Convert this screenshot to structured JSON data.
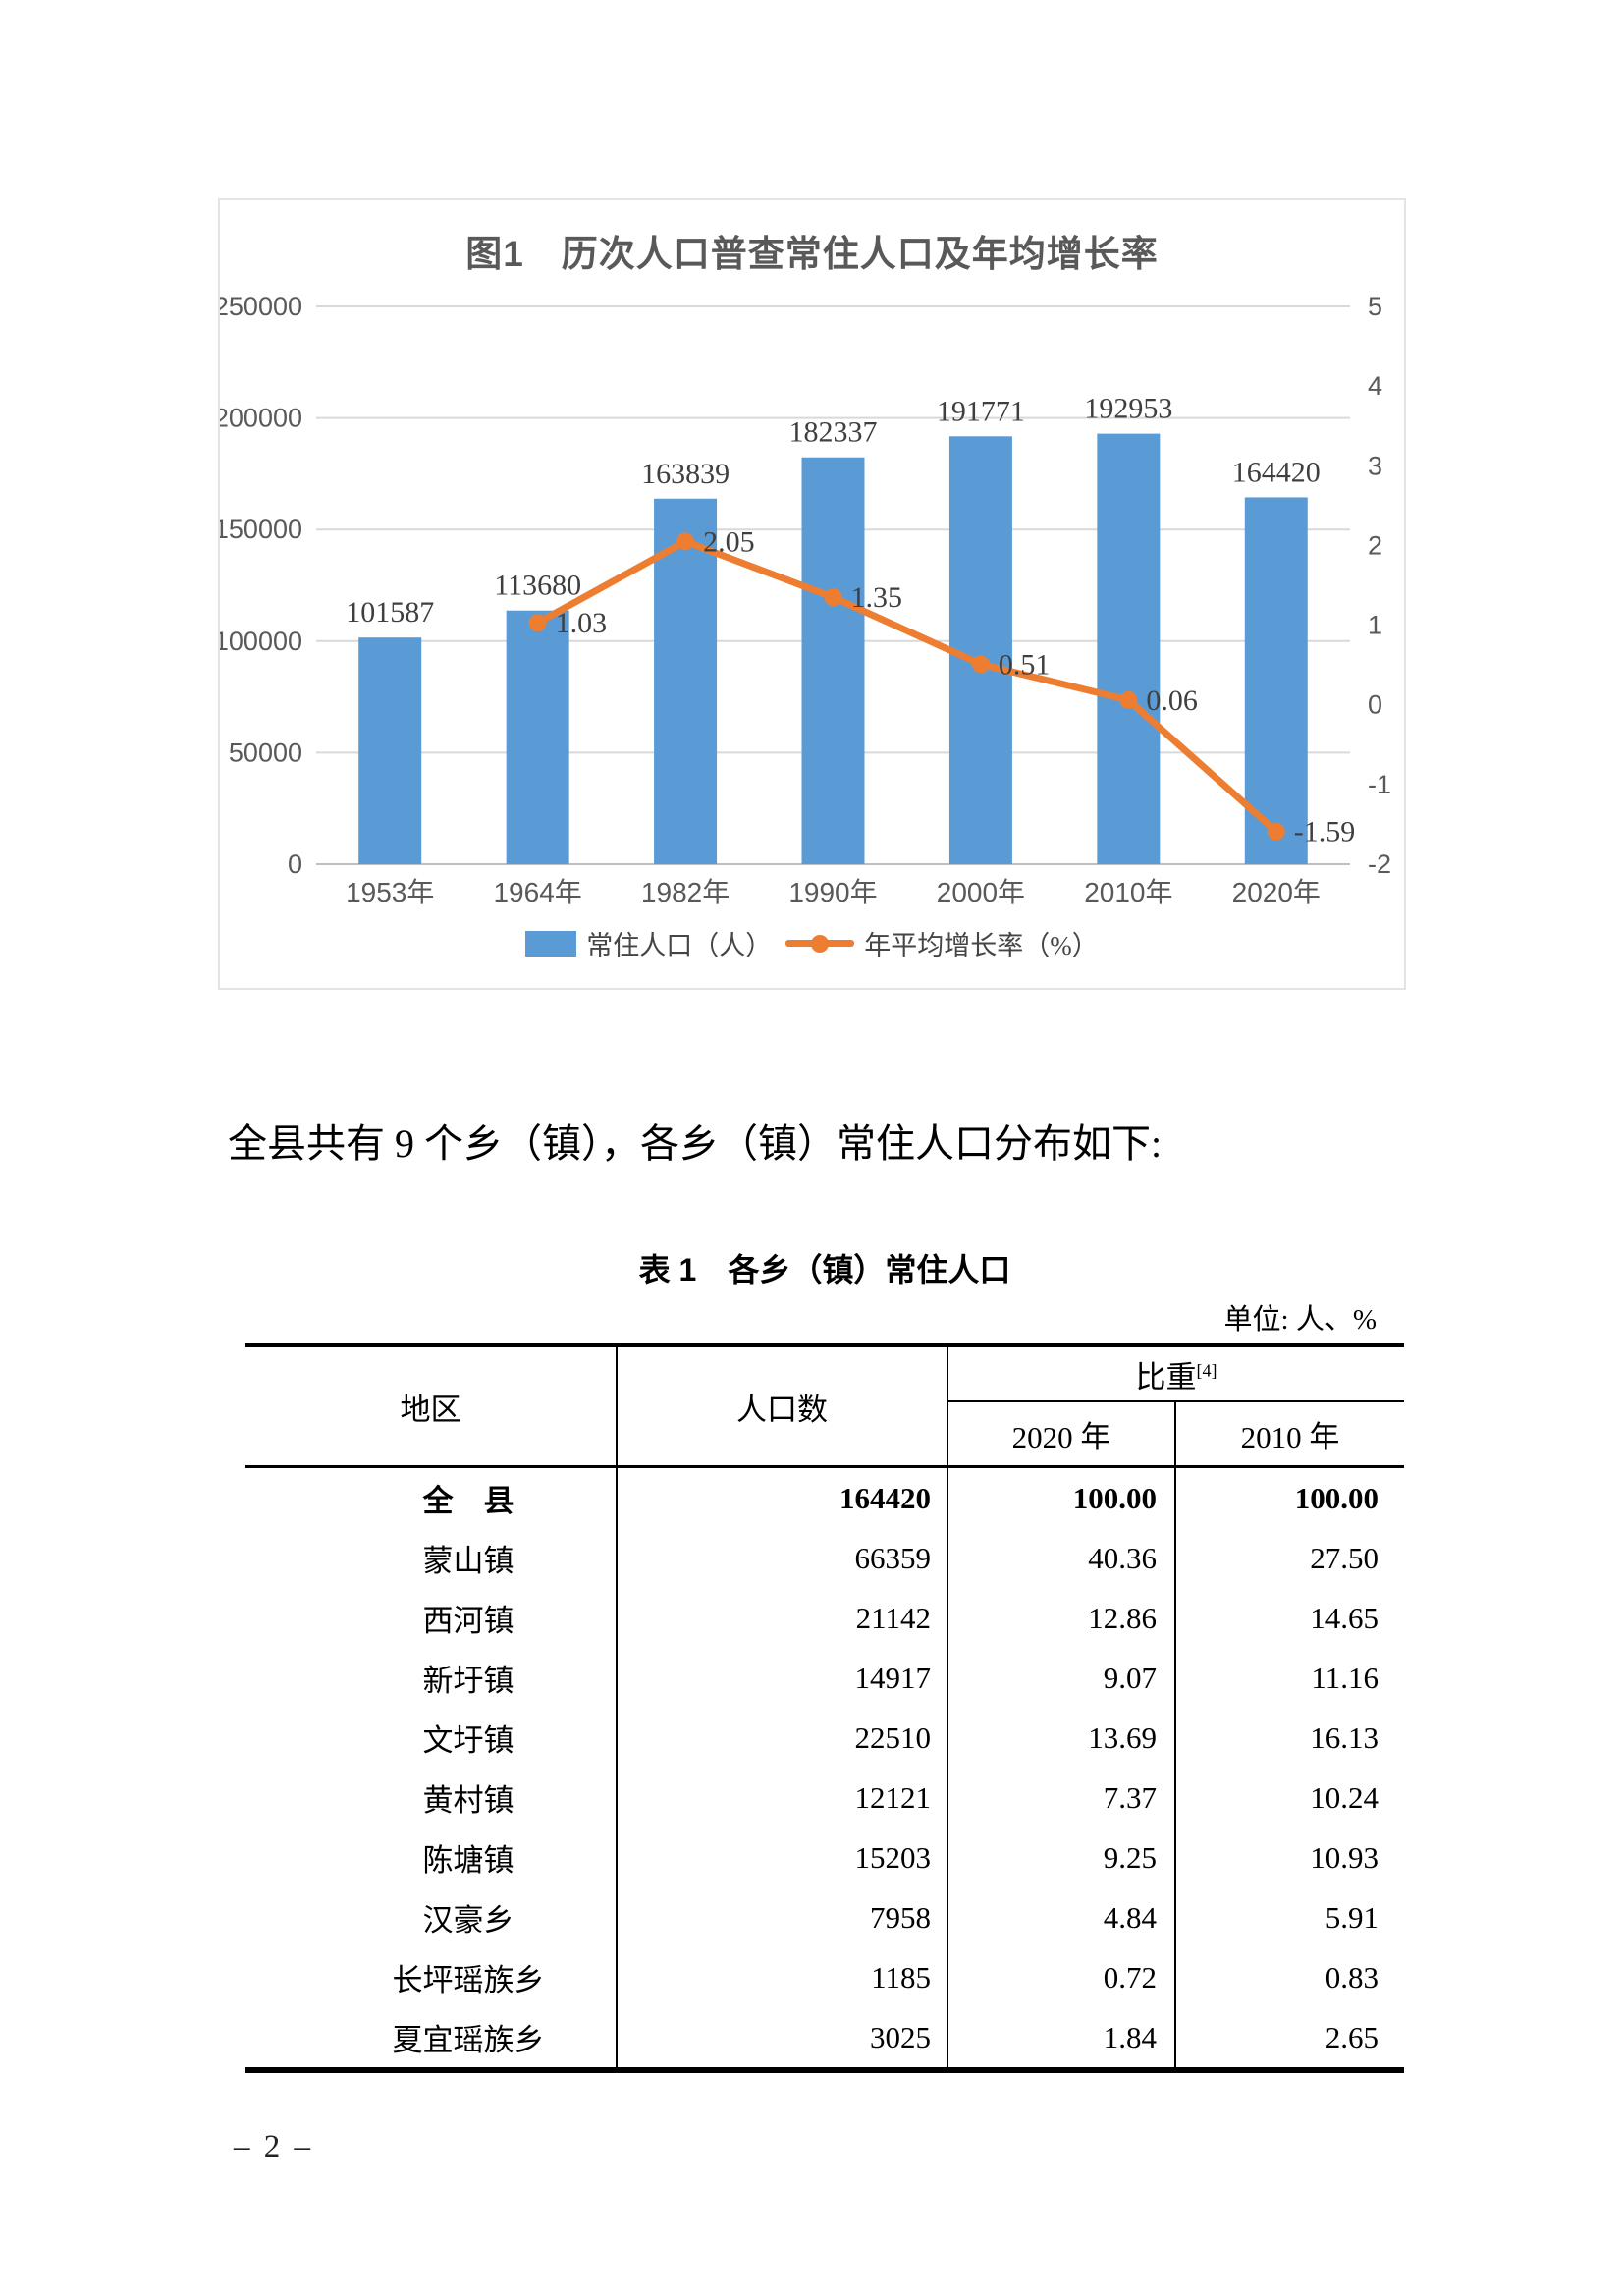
{
  "page": {
    "number_label": "– 2 –"
  },
  "chart": {
    "title": "图1　历次人口普查常住人口及年均增长率"
  },
  "chart_data": {
    "type": "bar",
    "title": "图1　历次人口普查常住人口及年均增长率",
    "categories": [
      "1953年",
      "1964年",
      "1982年",
      "1990年",
      "2000年",
      "2010年",
      "2020年"
    ],
    "series": [
      {
        "name": "常住人口（人）",
        "type": "bar",
        "color": "#5B9BD5",
        "values": [
          101587,
          113680,
          163839,
          182337,
          191771,
          192953,
          164420
        ]
      },
      {
        "name": "年平均增长率（%）",
        "type": "line",
        "color": "#ED7D31",
        "values": [
          null,
          1.03,
          2.05,
          1.35,
          0.51,
          0.06,
          -1.59
        ]
      }
    ],
    "left_axis": {
      "min": 0,
      "max": 250000,
      "ticks": [
        250000,
        200000,
        150000,
        100000,
        50000,
        0
      ]
    },
    "right_axis": {
      "min": -2,
      "max": 5,
      "ticks": [
        5,
        4,
        3,
        2,
        1,
        0,
        -1,
        -2
      ]
    },
    "grid": true,
    "legend_position": "bottom",
    "colors": {
      "gridline": "#d9d9d9",
      "axis_line": "#bfbfbf",
      "tick_text": "#595959",
      "data_label": "#3f3f3f"
    }
  },
  "paragraph": "全县共有 9 个乡（镇），各乡（镇）常住人口分布如下:",
  "table": {
    "title": "表 1　各乡（镇）常住人口",
    "unit_note": "单位: 人、%",
    "header": {
      "region": "地区",
      "population": "人口数",
      "share": "比重",
      "share_sup": "[4]",
      "col_2020": "2020 年",
      "col_2010": "2010 年"
    },
    "rows": [
      {
        "region": "全　县",
        "population": "164420",
        "p2020": "100.00",
        "p2010": "100.00",
        "bold": true
      },
      {
        "region": "蒙山镇",
        "population": "66359",
        "p2020": "40.36",
        "p2010": "27.50"
      },
      {
        "region": "西河镇",
        "population": "21142",
        "p2020": "12.86",
        "p2010": "14.65"
      },
      {
        "region": "新圩镇",
        "population": "14917",
        "p2020": "9.07",
        "p2010": "11.16"
      },
      {
        "region": "文圩镇",
        "population": "22510",
        "p2020": "13.69",
        "p2010": "16.13"
      },
      {
        "region": "黄村镇",
        "population": "12121",
        "p2020": "7.37",
        "p2010": "10.24"
      },
      {
        "region": "陈塘镇",
        "population": "15203",
        "p2020": "9.25",
        "p2010": "10.93"
      },
      {
        "region": "汉豪乡",
        "population": "7958",
        "p2020": "4.84",
        "p2010": "5.91"
      },
      {
        "region": "长坪瑶族乡",
        "population": "1185",
        "p2020": "0.72",
        "p2010": "0.83"
      },
      {
        "region": "夏宜瑶族乡",
        "population": "3025",
        "p2020": "1.84",
        "p2010": "2.65"
      }
    ]
  }
}
